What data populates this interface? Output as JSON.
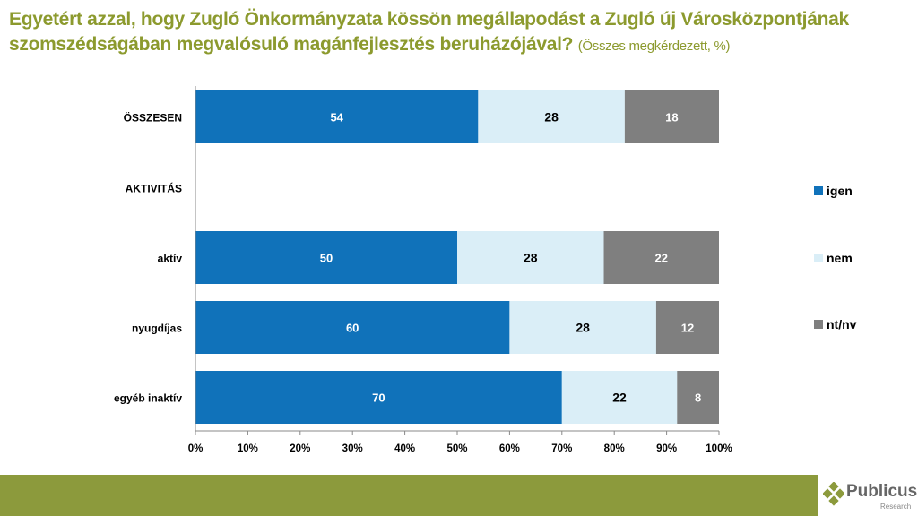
{
  "title": {
    "main": "Egyetért azzal, hogy Zugló Önkormányzata kössön megállapodást a Zugló új Városközpontjának szomszédságában megvalósuló magánfejlesztés beruházójával?",
    "sub": "(Összes megkérdezett, %)"
  },
  "chart_data": {
    "type": "bar",
    "stacked": true,
    "orientation": "horizontal",
    "categories": [
      "ÖSSZESEN",
      "AKTIVITÁS",
      "aktív",
      "nyugdíjas",
      "egyéb inaktív"
    ],
    "series": [
      {
        "name": "igen",
        "color": "#1072ba",
        "values": [
          54,
          null,
          50,
          60,
          70
        ]
      },
      {
        "name": "nem",
        "color": "#daeef7",
        "values": [
          28,
          null,
          28,
          28,
          22
        ]
      },
      {
        "name": "nt/nv",
        "color": "#7f7f7f",
        "values": [
          18,
          null,
          22,
          12,
          8
        ]
      }
    ],
    "xlim": [
      0,
      100
    ],
    "xticks": [
      "0%",
      "10%",
      "20%",
      "30%",
      "40%",
      "50%",
      "60%",
      "70%",
      "80%",
      "90%",
      "100%"
    ],
    "legend": "right"
  },
  "logo": {
    "name": "Publicus",
    "sub": "Research"
  }
}
